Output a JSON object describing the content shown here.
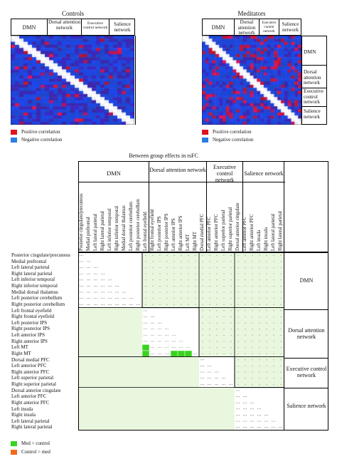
{
  "top_panels": {
    "left": {
      "title": "Controls",
      "headers": [
        "DMN",
        "Dorsal attention network",
        "Executive control network",
        "Salience network"
      ]
    },
    "right": {
      "title": "Meditators",
      "headers": [
        "DMN",
        "Dorsal attention network",
        "Executive control network",
        "Salience network"
      ],
      "side_labels": [
        "DMN",
        "Dorsal attention network",
        "Executive control network",
        "Salience network"
      ]
    },
    "legend": {
      "positive": "Positive correlation",
      "negative": "Negative correlation",
      "positive_color": "#e0141e",
      "negative_color": "#2a7de1"
    }
  },
  "bottom": {
    "title": "Between group effects in rsFC",
    "networks": [
      "DMN",
      "Dorsal attention network",
      "Executive control network",
      "Salience network"
    ],
    "network_row_labels": [
      "DMN",
      "Dorsal attention network",
      "Executive control network",
      "Salience network"
    ],
    "legend": {
      "med_gt_control": "Med > control",
      "control_gt_med": "Control > med",
      "med_color": "#39d31f",
      "control_color": "#f06a1a"
    }
  },
  "chart_data": {
    "type": "heatmap",
    "regions": [
      "Posterior cingulate/precuneus",
      "Medial prefrontal",
      "Left lateral parietal",
      "Right lateral parietal",
      "Left inferior temporal",
      "Right inferior temporal",
      "Medial dorsal thalamus",
      "Left posterior cerebellum",
      "Right posterior cerebellum",
      "Left frontal eyefield",
      "Right frontal eyefield",
      "Left posterior IPS",
      "Right posterior IPS",
      "Left anterior IPS",
      "Right anterior IPS",
      "Left MT",
      "Right MT",
      "Dorsal medial PFC",
      "Left anterior PFC",
      "Right anterior PFC",
      "Left superior parietal",
      "Right superior parietal",
      "Dorsal anterior cingulate",
      "Left anterior PFC",
      "Right anterior PFC",
      "Left insula",
      "Right insula",
      "Left lateral parietal",
      "Right lateral parietal"
    ],
    "network_groups": [
      {
        "name": "DMN",
        "start": 0,
        "end": 8
      },
      {
        "name": "Dorsal attention network",
        "start": 9,
        "end": 16
      },
      {
        "name": "Executive control network",
        "start": 17,
        "end": 21
      },
      {
        "name": "Salience network",
        "start": 22,
        "end": 28
      }
    ],
    "med_gt_control_cells": [
      [
        16,
        9
      ],
      [
        16,
        13
      ],
      [
        16,
        14
      ],
      [
        16,
        15
      ],
      [
        15,
        9
      ]
    ],
    "control_gt_med_cells": []
  }
}
